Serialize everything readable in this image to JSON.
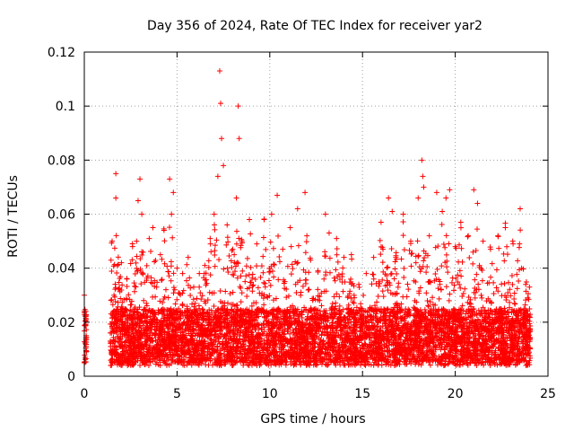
{
  "chart_data": {
    "type": "scatter",
    "title": "Day 356 of 2024, Rate Of TEC Index for receiver yar2",
    "xlabel": "GPS time / hours",
    "ylabel": "ROTI / TECUs",
    "xlim": [
      0,
      25
    ],
    "ylim": [
      0,
      0.12
    ],
    "xticks": [
      0,
      5,
      10,
      15,
      20,
      25
    ],
    "xtick_labels": [
      "0",
      "5",
      "10",
      "15",
      "20",
      "25"
    ],
    "yticks": [
      0,
      0.02,
      0.04,
      0.06,
      0.08,
      0.1,
      0.12
    ],
    "ytick_labels": [
      "0",
      "0.02",
      "0.04",
      "0.06",
      "0.08",
      "0.1",
      "0.12"
    ],
    "grid": true,
    "marker": "+",
    "color": "#ff0000",
    "series": [
      {
        "name": "ROTI",
        "x": [
          0.0,
          0.0,
          0.0,
          0.05,
          0.05,
          0.1,
          0.1,
          0.1,
          1.4,
          1.5,
          1.6,
          1.7,
          1.7,
          2.0,
          2.3,
          2.6,
          2.9,
          3.0,
          3.1,
          3.2,
          3.5,
          3.7,
          3.9,
          4.1,
          4.3,
          4.6,
          4.7,
          4.8,
          5.0,
          5.3,
          5.6,
          5.9,
          6.2,
          6.5,
          6.8,
          7.0,
          7.2,
          7.3,
          7.35,
          7.4,
          7.5,
          7.7,
          8.0,
          8.2,
          8.3,
          8.35,
          8.5,
          8.9,
          9.3,
          9.7,
          10.1,
          10.4,
          10.7,
          11.1,
          11.5,
          11.9,
          12.0,
          12.2,
          12.6,
          13.0,
          13.2,
          13.6,
          14.0,
          14.4,
          14.8,
          15.2,
          15.6,
          16.0,
          16.4,
          16.6,
          16.8,
          17.2,
          17.6,
          18.0,
          18.2,
          18.25,
          18.3,
          18.6,
          19.0,
          19.3,
          19.5,
          19.7,
          20.0,
          20.3,
          20.7,
          21.0,
          21.2,
          21.5,
          21.9,
          22.3,
          22.7,
          23.1,
          23.5,
          23.8,
          23.9,
          24.0
        ],
        "y": [
          0.024,
          0.03,
          0.005,
          0.012,
          0.007,
          0.015,
          0.009,
          0.011,
          0.013,
          0.05,
          0.03,
          0.075,
          0.066,
          0.042,
          0.036,
          0.048,
          0.065,
          0.073,
          0.06,
          0.028,
          0.051,
          0.055,
          0.033,
          0.045,
          0.054,
          0.073,
          0.06,
          0.068,
          0.04,
          0.038,
          0.044,
          0.033,
          0.038,
          0.041,
          0.049,
          0.06,
          0.074,
          0.113,
          0.101,
          0.088,
          0.078,
          0.056,
          0.047,
          0.066,
          0.1,
          0.088,
          0.05,
          0.058,
          0.049,
          0.058,
          0.06,
          0.067,
          0.047,
          0.055,
          0.062,
          0.068,
          0.052,
          0.043,
          0.039,
          0.06,
          0.053,
          0.051,
          0.044,
          0.045,
          0.034,
          0.038,
          0.044,
          0.057,
          0.066,
          0.061,
          0.044,
          0.06,
          0.05,
          0.066,
          0.08,
          0.074,
          0.07,
          0.052,
          0.068,
          0.061,
          0.066,
          0.069,
          0.048,
          0.057,
          0.052,
          0.069,
          0.064,
          0.05,
          0.047,
          0.052,
          0.055,
          0.05,
          0.062,
          0.034,
          0.029,
          0.033
        ]
      }
    ]
  }
}
